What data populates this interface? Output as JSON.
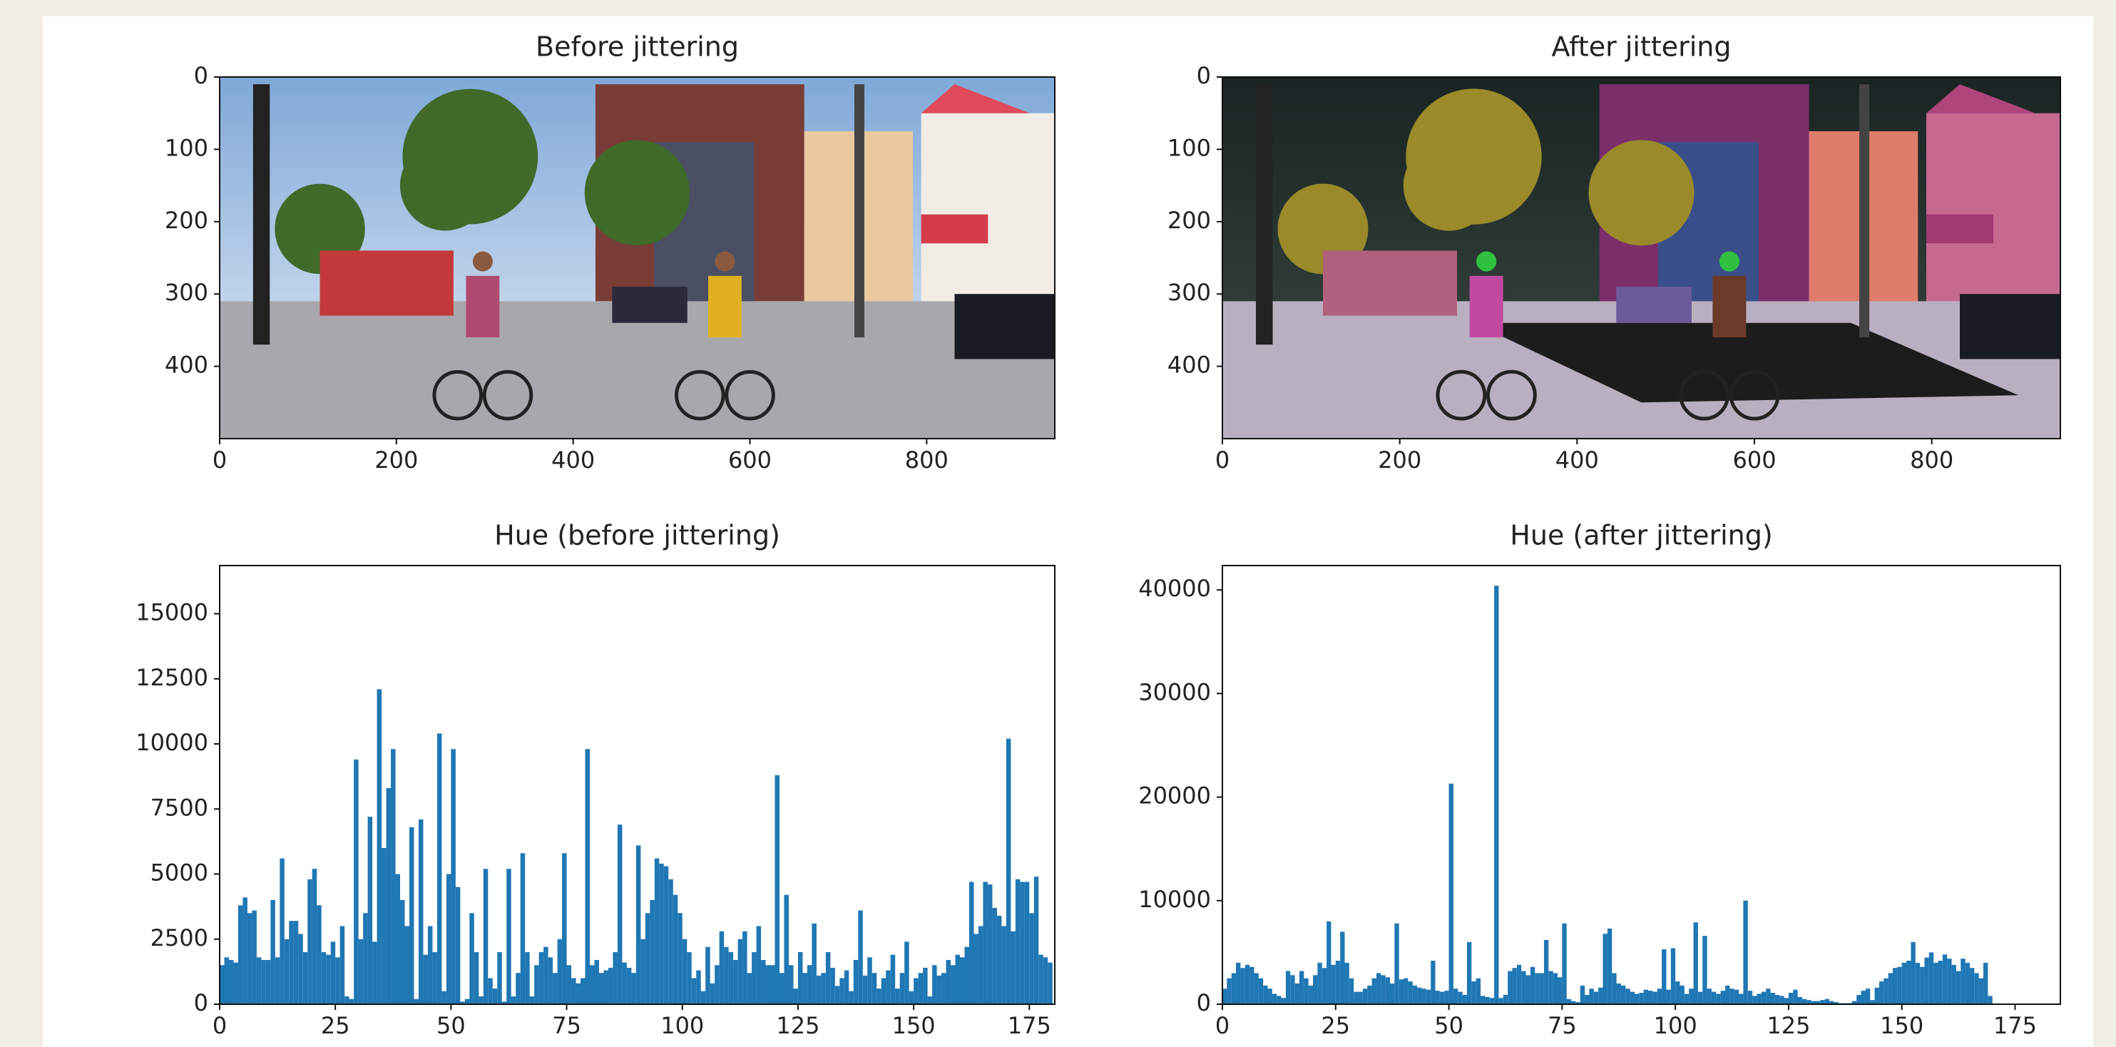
{
  "chart_data": [
    {
      "type": "image",
      "title": "Before jittering",
      "xlim": [
        0,
        945
      ],
      "ylim": [
        500,
        0
      ],
      "xticks": [
        0,
        200,
        400,
        600,
        800
      ],
      "yticks": [
        0,
        100,
        200,
        300,
        400
      ]
    },
    {
      "type": "image",
      "title": "After jittering",
      "xlim": [
        0,
        945
      ],
      "ylim": [
        500,
        0
      ],
      "xticks": [
        0,
        200,
        400,
        600,
        800
      ],
      "yticks": [
        0,
        100,
        200,
        300,
        400
      ]
    },
    {
      "type": "histogram",
      "title": "Hue (before jittering)",
      "color": "#1f77b4",
      "bins": [
        0,
        1,
        2,
        3,
        4,
        5,
        6,
        7,
        8,
        9,
        10,
        11,
        12,
        13,
        14,
        15,
        16,
        17,
        18,
        19,
        20,
        21,
        22,
        23,
        24,
        25,
        26,
        27,
        28,
        29,
        30,
        31,
        32,
        33,
        34,
        35,
        36,
        37,
        38,
        39,
        40,
        41,
        42,
        43,
        44,
        45,
        46,
        47,
        48,
        49,
        50,
        51,
        52,
        53,
        54,
        55,
        56,
        57,
        58,
        59,
        60,
        61,
        62,
        63,
        64,
        65,
        66,
        67,
        68,
        69,
        70,
        71,
        72,
        73,
        74,
        75,
        76,
        77,
        78,
        79,
        80,
        81,
        82,
        83,
        84,
        85,
        86,
        87,
        88,
        89,
        90,
        91,
        92,
        93,
        94,
        95,
        96,
        97,
        98,
        99,
        100,
        101,
        102,
        103,
        104,
        105,
        106,
        107,
        108,
        109,
        110,
        111,
        112,
        113,
        114,
        115,
        116,
        117,
        118,
        119,
        120,
        121,
        122,
        123,
        124,
        125,
        126,
        127,
        128,
        129,
        130,
        131,
        132,
        133,
        134,
        135,
        136,
        137,
        138,
        139,
        140,
        141,
        142,
        143,
        144,
        145,
        146,
        147,
        148,
        149,
        150,
        151,
        152,
        153,
        154,
        155,
        156,
        157,
        158,
        159,
        160,
        161,
        162,
        163,
        164,
        165,
        166,
        167,
        168,
        169,
        170,
        171,
        172,
        173,
        174,
        175,
        176,
        177,
        178,
        179,
        180
      ],
      "values": [
        1500,
        1800,
        1700,
        1600,
        3800,
        4100,
        3500,
        3600,
        1800,
        1700,
        1700,
        4000,
        1800,
        5600,
        2500,
        3200,
        3200,
        2700,
        2000,
        4800,
        5200,
        3800,
        2000,
        1900,
        2400,
        1800,
        3000,
        300,
        200,
        9400,
        2500,
        3500,
        7200,
        2400,
        12100,
        6000,
        8300,
        9800,
        5000,
        4000,
        3000,
        6800,
        200,
        7100,
        1900,
        3000,
        2000,
        10400,
        500,
        5000,
        9800,
        4500,
        100,
        200,
        3500,
        2000,
        300,
        5200,
        1000,
        600,
        2000,
        100,
        5200,
        300,
        1200,
        5800,
        2000,
        300,
        1500,
        2000,
        2200,
        1800,
        1200,
        2500,
        5800,
        1500,
        1000,
        800,
        1000,
        9800,
        1500,
        1700,
        1200,
        1300,
        1400,
        2000,
        6900,
        1600,
        1400,
        1200,
        6100,
        2500,
        3500,
        4000,
        5600,
        5400,
        5300,
        4800,
        4200,
        3500,
        2500,
        2000,
        1000,
        1300,
        500,
        2200,
        800,
        1500,
        2800,
        2200,
        2000,
        1700,
        2500,
        2800,
        1200,
        2000,
        3000,
        1700,
        1500,
        1500,
        8800,
        1200,
        4200,
        1500,
        600,
        2000,
        1200,
        1500,
        3100,
        1100,
        1200,
        2000,
        1400,
        700,
        1000,
        1300,
        500,
        1700,
        3600,
        1100,
        1800,
        1200,
        600,
        1000,
        1300,
        1900,
        600,
        1200,
        2400,
        500,
        1000,
        1200,
        1400,
        300,
        1500,
        1100,
        1200,
        1700,
        1500,
        1900,
        1800,
        2200,
        4700,
        2700,
        3000,
        4700,
        4600,
        3700,
        3400,
        3000,
        10200,
        2800,
        4800,
        4700,
        4700,
        3500,
        4900,
        1900,
        1800,
        1600
      ],
      "xlim": [
        0,
        180.5
      ],
      "ylim": [
        0,
        16850
      ],
      "xticks": [
        0,
        25,
        50,
        75,
        100,
        125,
        150,
        175
      ],
      "yticks": [
        0,
        2500,
        5000,
        7500,
        10000,
        12500,
        15000
      ]
    },
    {
      "type": "histogram",
      "title": "Hue (after jittering)",
      "color": "#1f77b4",
      "bins": [
        0,
        1,
        2,
        3,
        4,
        5,
        6,
        7,
        8,
        9,
        10,
        11,
        12,
        13,
        14,
        15,
        16,
        17,
        18,
        19,
        20,
        21,
        22,
        23,
        24,
        25,
        26,
        27,
        28,
        29,
        30,
        31,
        32,
        33,
        34,
        35,
        36,
        37,
        38,
        39,
        40,
        41,
        42,
        43,
        44,
        45,
        46,
        47,
        48,
        49,
        50,
        51,
        52,
        53,
        54,
        55,
        56,
        57,
        58,
        59,
        60,
        61,
        62,
        63,
        64,
        65,
        66,
        67,
        68,
        69,
        70,
        71,
        72,
        73,
        74,
        75,
        76,
        77,
        78,
        79,
        80,
        81,
        82,
        83,
        84,
        85,
        86,
        87,
        88,
        89,
        90,
        91,
        92,
        93,
        94,
        95,
        96,
        97,
        98,
        99,
        100,
        101,
        102,
        103,
        104,
        105,
        106,
        107,
        108,
        109,
        110,
        111,
        112,
        113,
        114,
        115,
        116,
        117,
        118,
        119,
        120,
        121,
        122,
        123,
        124,
        125,
        126,
        127,
        128,
        129,
        130,
        131,
        132,
        133,
        134,
        135,
        136,
        137,
        138,
        139,
        140,
        141,
        142,
        143,
        144,
        145,
        146,
        147,
        148,
        149,
        150,
        151,
        152,
        153,
        154,
        155,
        156,
        157,
        158,
        159,
        160,
        161,
        162,
        163,
        164,
        165,
        166,
        167,
        168,
        169,
        170,
        171,
        172,
        173,
        174,
        175,
        176,
        177,
        178,
        179,
        180
      ],
      "values": [
        1500,
        2500,
        3000,
        4000,
        3500,
        3800,
        3600,
        3000,
        2500,
        1800,
        1500,
        1000,
        800,
        600,
        3200,
        2800,
        2000,
        3200,
        2500,
        1800,
        2800,
        4000,
        3500,
        8000,
        3800,
        4200,
        7000,
        4000,
        2500,
        1200,
        1200,
        1500,
        1800,
        2500,
        3000,
        2800,
        2600,
        2000,
        7800,
        2400,
        2500,
        2200,
        1800,
        1600,
        1500,
        1400,
        4200,
        1300,
        1200,
        1300,
        21300,
        1500,
        1200,
        900,
        6000,
        2200,
        2500,
        800,
        700,
        600,
        40400,
        600,
        900,
        3200,
        3500,
        3800,
        3200,
        2800,
        3600,
        3000,
        3000,
        6200,
        3200,
        3000,
        2600,
        7800,
        500,
        300,
        200,
        1800,
        900,
        1500,
        1200,
        1600,
        6800,
        7300,
        3000,
        2000,
        1800,
        1500,
        1200,
        1000,
        1100,
        1400,
        1300,
        1200,
        1500,
        5300,
        1400,
        5400,
        2200,
        1800,
        1000,
        1500,
        7900,
        1200,
        6600,
        1500,
        1200,
        1000,
        1300,
        1800,
        1500,
        1400,
        1000,
        10000,
        1300,
        800,
        1000,
        1200,
        1500,
        1100,
        900,
        800,
        600,
        1100,
        1400,
        700,
        500,
        400,
        300,
        300,
        400,
        500,
        300,
        200,
        100,
        100,
        100,
        300,
        900,
        1300,
        1500,
        400,
        1600,
        2200,
        2500,
        3000,
        3500,
        3600,
        4000,
        4200,
        6000,
        4000,
        3600,
        4500,
        5000,
        4000,
        4200,
        4800,
        4400,
        3800,
        3200,
        4400,
        4000,
        3500,
        3000,
        2500,
        4000,
        800,
        0,
        0,
        0,
        0,
        0,
        0,
        0,
        0,
        0,
        0
      ],
      "xlim": [
        0,
        185
      ],
      "ylim": [
        0,
        42350
      ],
      "xticks": [
        0,
        25,
        50,
        75,
        100,
        125,
        150,
        175
      ],
      "yticks": [
        0,
        10000,
        20000,
        30000,
        40000
      ]
    }
  ]
}
